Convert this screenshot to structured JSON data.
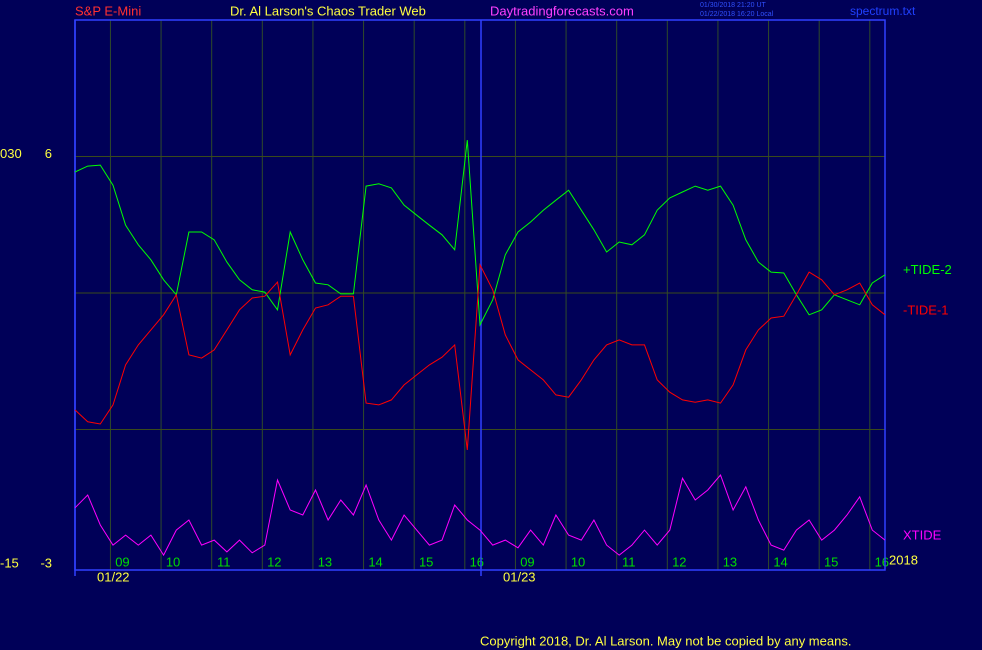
{
  "header": {
    "symbol": "S&P E-Mini",
    "site": "Dr. Al Larson's Chaos Trader Web",
    "url": "Daytradingforecasts.com",
    "stamp_1": "01/30/2018 21:20 UT",
    "stamp_2": "01/22/2018 16:20 Local",
    "file": "spectrum.txt"
  },
  "footer": {
    "copyright": "Copyright 2018, Dr. Al Larson. May not be copied by any means."
  },
  "chart_data": {
    "type": "line",
    "x": [
      0,
      0.25,
      0.5,
      0.75,
      1,
      1.25,
      1.5,
      1.75,
      2,
      2.25,
      2.5,
      2.75,
      3,
      3.25,
      3.5,
      3.75,
      4,
      4.25,
      4.5,
      4.75,
      5,
      5.25,
      5.5,
      5.75,
      6,
      6.25,
      6.5,
      6.75,
      7,
      7.25,
      7.5,
      7.75,
      8,
      8.25,
      8.5,
      8.75,
      9,
      9.25,
      9.5,
      9.75,
      10,
      10.25,
      10.5,
      10.75,
      11,
      11.25,
      11.5,
      11.75,
      12,
      12.25,
      12.5,
      12.75,
      13,
      13.25,
      13.5,
      13.75,
      14,
      14.25,
      14.5,
      14.75,
      15,
      15.25,
      15.5,
      15.75,
      16
    ],
    "xlim": [
      0,
      16
    ],
    "xticks": [
      {
        "value": 0.7,
        "label": "09"
      },
      {
        "value": 1.7,
        "label": "10"
      },
      {
        "value": 2.7,
        "label": "11"
      },
      {
        "value": 3.7,
        "label": "12"
      },
      {
        "value": 4.7,
        "label": "13"
      },
      {
        "value": 5.7,
        "label": "14"
      },
      {
        "value": 6.7,
        "label": "15"
      },
      {
        "value": 7.7,
        "label": "16"
      },
      {
        "value": 8.7,
        "label": "09"
      },
      {
        "value": 9.7,
        "label": "10"
      },
      {
        "value": 10.7,
        "label": "11"
      },
      {
        "value": 11.7,
        "label": "12"
      },
      {
        "value": 12.7,
        "label": "13"
      },
      {
        "value": 13.7,
        "label": "14"
      },
      {
        "value": 14.7,
        "label": "15"
      },
      {
        "value": 15.7,
        "label": "16"
      }
    ],
    "date_ticks": [
      {
        "value": 0,
        "label": "01/22"
      },
      {
        "value": 8.02,
        "label": "01/23"
      }
    ],
    "year": "2018",
    "ylim": [
      -3,
      9
    ],
    "yticks": [
      -3,
      {
        "value": 0,
        "label": null
      },
      {
        "value": 3,
        "label": null
      },
      6
    ],
    "y2lim": [
      -15,
      45
    ],
    "y2ticks": [
      -15,
      {
        "value": 30,
        "label": "030"
      }
    ],
    "grid": true,
    "series": [
      {
        "name": "+TIDE-2",
        "color": "#00ff00",
        "values": [
          5.66,
          5.79,
          5.81,
          5.37,
          4.49,
          4.06,
          3.73,
          3.29,
          2.96,
          4.34,
          4.34,
          4.17,
          3.68,
          3.29,
          3.07,
          3.02,
          2.63,
          4.34,
          3.73,
          3.22,
          3.18,
          2.98,
          2.98,
          5.35,
          5.4,
          5.31,
          4.93,
          4.71,
          4.49,
          4.28,
          3.95,
          6.36,
          2.3,
          2.85,
          3.84,
          4.34,
          4.56,
          4.82,
          5.04,
          5.26,
          4.82,
          4.39,
          3.9,
          4.12,
          4.06,
          4.28,
          4.82,
          5.09,
          5.22,
          5.35,
          5.26,
          5.35,
          4.93,
          4.17,
          3.68,
          3.46,
          3.44,
          2.96,
          2.52,
          2.63,
          2.96,
          2.85,
          2.74,
          3.22,
          3.4
        ]
      },
      {
        "name": "-TIDE-1",
        "color": "#ff0000",
        "values": [
          0.43,
          0.17,
          0.12,
          0.54,
          1.42,
          1.86,
          2.19,
          2.52,
          2.96,
          1.64,
          1.57,
          1.75,
          2.19,
          2.63,
          2.89,
          2.93,
          3.24,
          1.64,
          2.19,
          2.67,
          2.74,
          2.93,
          2.93,
          0.58,
          0.54,
          0.65,
          0.98,
          1.2,
          1.42,
          1.59,
          1.86,
          -0.45,
          3.62,
          3.07,
          2.08,
          1.53,
          1.31,
          1.09,
          0.76,
          0.71,
          1.09,
          1.53,
          1.86,
          1.97,
          1.86,
          1.86,
          1.09,
          0.82,
          0.65,
          0.6,
          0.65,
          0.58,
          0.98,
          1.75,
          2.19,
          2.45,
          2.49,
          2.96,
          3.46,
          3.29,
          2.96,
          3.07,
          3.22,
          2.74,
          2.52
        ]
      },
      {
        "name": "XTIDE",
        "color": "#ff00ff",
        "values": [
          -1.72,
          -1.44,
          -2.1,
          -2.54,
          -2.32,
          -2.54,
          -2.32,
          -2.76,
          -2.21,
          -1.99,
          -2.54,
          -2.43,
          -2.69,
          -2.43,
          -2.71,
          -2.54,
          -1.11,
          -1.77,
          -1.88,
          -1.33,
          -1.99,
          -1.55,
          -1.88,
          -1.22,
          -1.99,
          -2.43,
          -1.88,
          -2.21,
          -2.54,
          -2.43,
          -1.66,
          -1.99,
          -2.21,
          -2.54,
          -2.43,
          -2.6,
          -2.21,
          -2.54,
          -1.88,
          -2.32,
          -2.43,
          -1.99,
          -2.54,
          -2.76,
          -2.54,
          -2.21,
          -2.54,
          -2.21,
          -1.07,
          -1.55,
          -1.33,
          -1.0,
          -1.77,
          -1.26,
          -1.99,
          -2.54,
          -2.65,
          -2.21,
          -1.99,
          -2.43,
          -2.21,
          -1.88,
          -1.48,
          -2.21,
          -2.43
        ]
      }
    ]
  }
}
